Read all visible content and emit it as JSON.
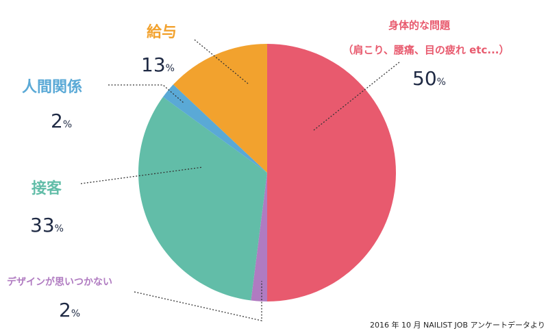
{
  "chart_data": {
    "type": "pie",
    "slices": [
      {
        "label": "身体的な問題",
        "sublabel": "（肩こり、腰痛、目の疲れ etc...）",
        "value": 50,
        "color": "#e85a6e"
      },
      {
        "label": "デザインが思いつかない",
        "sublabel": "",
        "value": 2,
        "color": "#b07bc1"
      },
      {
        "label": "接客",
        "sublabel": "",
        "value": 33,
        "color": "#62bda8"
      },
      {
        "label": "人間関係",
        "sublabel": "",
        "value": 2,
        "color": "#5aa9d6"
      },
      {
        "label": "給与",
        "sublabel": "",
        "value": 13,
        "color": "#f2a22e"
      }
    ],
    "percent_sign": "%",
    "source": "2016 年 10 月 NAILIST JOB アンケートデータより"
  }
}
